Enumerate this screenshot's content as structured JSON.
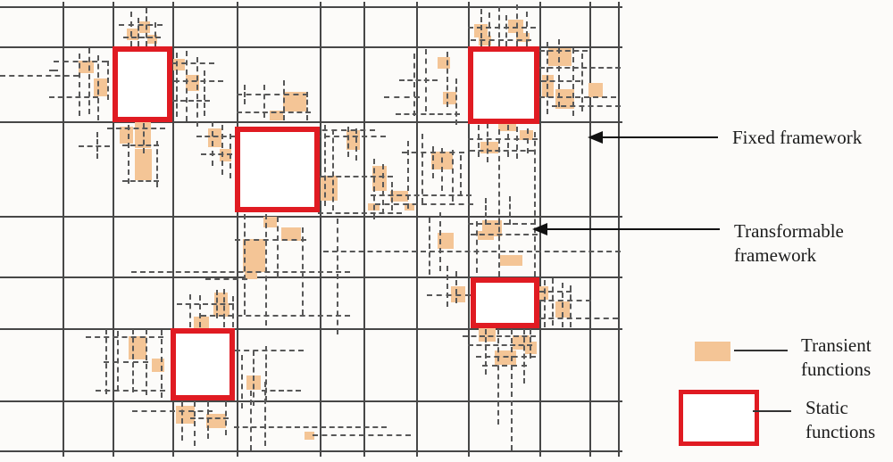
{
  "colors": {
    "background": "#fcfbf9",
    "grid": "#474747",
    "dash": "#585858",
    "static_red": "#e01b22",
    "transient_orange": "#f4c596",
    "text": "#1b1b1b",
    "arrow": "#111111"
  },
  "grid": {
    "v_lines": [
      70,
      126,
      193,
      265,
      358,
      407,
      466,
      524,
      604,
      660,
      692
    ],
    "h_lines": [
      7,
      52,
      136,
      242,
      310,
      368,
      449,
      505
    ],
    "v_span": [
      2,
      512
    ],
    "h_span": [
      0,
      697
    ]
  },
  "static_squares": [
    [
      126,
      52,
      67,
      85
    ],
    [
      263,
      142,
      95,
      96
    ],
    [
      524,
      52,
      80,
      87
    ],
    [
      527,
      311,
      77,
      57
    ],
    [
      191,
      368,
      72,
      81
    ]
  ],
  "transient_squares": [
    [
      142,
      32,
      13,
      13
    ],
    [
      156,
      24,
      12,
      13
    ],
    [
      165,
      39,
      11,
      10
    ],
    [
      88,
      68,
      17,
      14
    ],
    [
      105,
      88,
      15,
      20
    ],
    [
      134,
      142,
      15,
      19
    ],
    [
      151,
      136,
      18,
      30
    ],
    [
      151,
      167,
      19,
      35
    ],
    [
      194,
      66,
      13,
      13
    ],
    [
      208,
      84,
      15,
      18
    ],
    [
      317,
      103,
      26,
      22
    ],
    [
      302,
      124,
      15,
      11
    ],
    [
      233,
      144,
      15,
      21
    ],
    [
      246,
      167,
      13,
      14
    ],
    [
      359,
      197,
      19,
      28
    ],
    [
      295,
      243,
      15,
      12
    ],
    [
      315,
      255,
      22,
      15
    ],
    [
      272,
      268,
      25,
      37
    ],
    [
      274,
      303,
      14,
      10
    ],
    [
      240,
      328,
      15,
      17
    ],
    [
      388,
      146,
      15,
      22
    ],
    [
      417,
      186,
      16,
      28
    ],
    [
      437,
      214,
      20,
      12
    ],
    [
      483,
      170,
      24,
      20
    ],
    [
      412,
      228,
      13,
      8
    ],
    [
      453,
      228,
      11,
      8
    ],
    [
      490,
      64,
      14,
      13
    ],
    [
      496,
      103,
      15,
      14
    ],
    [
      490,
      261,
      18,
      18
    ],
    [
      535,
      259,
      18,
      10
    ],
    [
      531,
      27,
      15,
      15
    ],
    [
      536,
      40,
      14,
      11
    ],
    [
      569,
      22,
      17,
      15
    ],
    [
      578,
      37,
      15,
      10
    ],
    [
      614,
      54,
      26,
      20
    ],
    [
      607,
      84,
      13,
      25
    ],
    [
      622,
      100,
      21,
      22
    ],
    [
      659,
      93,
      16,
      16
    ],
    [
      558,
      137,
      20,
      10
    ],
    [
      582,
      146,
      15,
      11
    ],
    [
      538,
      159,
      20,
      13
    ],
    [
      540,
      247,
      22,
      18
    ],
    [
      560,
      286,
      25,
      12
    ],
    [
      602,
      321,
      12,
      15
    ],
    [
      622,
      338,
      16,
      18
    ],
    [
      505,
      321,
      16,
      18
    ],
    [
      536,
      368,
      19,
      15
    ],
    [
      574,
      376,
      19,
      16
    ],
    [
      554,
      393,
      24,
      16
    ],
    [
      588,
      383,
      13,
      14
    ],
    [
      217,
      355,
      17,
      13
    ],
    [
      239,
      340,
      18,
      15
    ],
    [
      144,
      377,
      20,
      26
    ],
    [
      170,
      402,
      14,
      15
    ],
    [
      197,
      455,
      21,
      20
    ],
    [
      231,
      464,
      22,
      16
    ],
    [
      276,
      421,
      16,
      16
    ],
    [
      341,
      484,
      11,
      9
    ]
  ],
  "dashed_v": [
    [
      146,
      13,
      52
    ],
    [
      154,
      20,
      52
    ],
    [
      163,
      9,
      52
    ],
    [
      173,
      25,
      52
    ],
    [
      88,
      60,
      130
    ],
    [
      99,
      54,
      128
    ],
    [
      109,
      62,
      135
    ],
    [
      120,
      68,
      112
    ],
    [
      108,
      148,
      178
    ],
    [
      143,
      140,
      206
    ],
    [
      160,
      138,
      172
    ],
    [
      175,
      158,
      210
    ],
    [
      197,
      59,
      131
    ],
    [
      208,
      57,
      136
    ],
    [
      220,
      64,
      142
    ],
    [
      228,
      79,
      130
    ],
    [
      273,
      95,
      117
    ],
    [
      295,
      95,
      132
    ],
    [
      317,
      90,
      135
    ],
    [
      343,
      103,
      135
    ],
    [
      237,
      136,
      186
    ],
    [
      248,
      140,
      196
    ],
    [
      257,
      150,
      200
    ],
    [
      273,
      240,
      353
    ],
    [
      297,
      240,
      365
    ],
    [
      310,
      243,
      312
    ],
    [
      338,
      255,
      353
    ],
    [
      377,
      245,
      375
    ],
    [
      242,
      325,
      357
    ],
    [
      363,
      140,
      231
    ],
    [
      372,
      145,
      236
    ],
    [
      389,
      142,
      176
    ],
    [
      398,
      144,
      180
    ],
    [
      418,
      178,
      246
    ],
    [
      428,
      184,
      240
    ],
    [
      438,
      204,
      236
    ],
    [
      456,
      158,
      234
    ],
    [
      472,
      150,
      228
    ],
    [
      484,
      164,
      200
    ],
    [
      494,
      166,
      214
    ],
    [
      506,
      168,
      226
    ],
    [
      515,
      174,
      220
    ],
    [
      463,
      60,
      130
    ],
    [
      476,
      55,
      125
    ],
    [
      500,
      58,
      120
    ],
    [
      510,
      88,
      140
    ],
    [
      480,
      244,
      308
    ],
    [
      492,
      238,
      304
    ],
    [
      533,
      248,
      306
    ],
    [
      538,
      10,
      52
    ],
    [
      547,
      14,
      52
    ],
    [
      558,
      7,
      52
    ],
    [
      566,
      17,
      52
    ],
    [
      578,
      5,
      52
    ],
    [
      589,
      13,
      52
    ],
    [
      612,
      47,
      128
    ],
    [
      625,
      44,
      120
    ],
    [
      641,
      54,
      130
    ],
    [
      651,
      60,
      125
    ],
    [
      535,
      140,
      176
    ],
    [
      545,
      138,
      182
    ],
    [
      568,
      140,
      176
    ],
    [
      578,
      142,
      178
    ],
    [
      590,
      144,
      172
    ],
    [
      558,
      145,
      310
    ],
    [
      598,
      148,
      310
    ],
    [
      543,
      222,
      252
    ],
    [
      570,
      220,
      252
    ],
    [
      609,
      314,
      367
    ],
    [
      618,
      312,
      365
    ],
    [
      629,
      317,
      367
    ],
    [
      638,
      320,
      367
    ],
    [
      543,
      369,
      420
    ],
    [
      557,
      369,
      476
    ],
    [
      572,
      369,
      505
    ],
    [
      586,
      369,
      430
    ],
    [
      593,
      369,
      402
    ],
    [
      500,
      298,
      344
    ],
    [
      510,
      304,
      340
    ],
    [
      212,
      330,
      367
    ],
    [
      223,
      331,
      367
    ],
    [
      250,
      324,
      367
    ],
    [
      260,
      332,
      367
    ],
    [
      118,
      369,
      442
    ],
    [
      131,
      371,
      438
    ],
    [
      148,
      369,
      440
    ],
    [
      163,
      369,
      443
    ],
    [
      180,
      370,
      446
    ],
    [
      203,
      450,
      494
    ],
    [
      217,
      450,
      500
    ],
    [
      232,
      450,
      492
    ],
    [
      252,
      450,
      488
    ],
    [
      280,
      438,
      505
    ],
    [
      296,
      428,
      500
    ],
    [
      270,
      398,
      458
    ],
    [
      283,
      393,
      455
    ],
    [
      297,
      388,
      450
    ]
  ],
  "dashed_h": [
    [
      133,
      182,
      27
    ],
    [
      138,
      180,
      41
    ],
    [
      60,
      120,
      68
    ],
    [
      0,
      88,
      84
    ],
    [
      55,
      110,
      108
    ],
    [
      55,
      65,
      78
    ],
    [
      88,
      123,
      163
    ],
    [
      137,
      178,
      162
    ],
    [
      137,
      178,
      202
    ],
    [
      193,
      240,
      70
    ],
    [
      195,
      250,
      90
    ],
    [
      193,
      235,
      112
    ],
    [
      120,
      185,
      143
    ],
    [
      265,
      345,
      105
    ],
    [
      265,
      348,
      125
    ],
    [
      220,
      263,
      152
    ],
    [
      225,
      260,
      172
    ],
    [
      263,
      343,
      268
    ],
    [
      230,
      277,
      312
    ],
    [
      147,
      392,
      304
    ],
    [
      225,
      392,
      353
    ],
    [
      362,
      695,
      281
    ],
    [
      350,
      420,
      145
    ],
    [
      353,
      432,
      152
    ],
    [
      450,
      520,
      170
    ],
    [
      357,
      440,
      197
    ],
    [
      415,
      528,
      218
    ],
    [
      420,
      530,
      228
    ],
    [
      356,
      450,
      238
    ],
    [
      447,
      490,
      89
    ],
    [
      443,
      515,
      127
    ],
    [
      430,
      470,
      108
    ],
    [
      524,
      600,
      30
    ],
    [
      527,
      595,
      44
    ],
    [
      604,
      658,
      56
    ],
    [
      604,
      695,
      75
    ],
    [
      606,
      650,
      90
    ],
    [
      604,
      690,
      108
    ],
    [
      618,
      695,
      118
    ],
    [
      524,
      602,
      155
    ],
    [
      526,
      598,
      168
    ],
    [
      524,
      600,
      250
    ],
    [
      527,
      602,
      262
    ],
    [
      604,
      640,
      326
    ],
    [
      604,
      662,
      336
    ],
    [
      604,
      692,
      356
    ],
    [
      518,
      600,
      376
    ],
    [
      524,
      596,
      386
    ],
    [
      533,
      600,
      399
    ],
    [
      540,
      590,
      409
    ],
    [
      478,
      527,
      330
    ],
    [
      198,
      262,
      340
    ],
    [
      96,
      183,
      377
    ],
    [
      116,
      166,
      405
    ],
    [
      107,
      185,
      437
    ],
    [
      148,
      238,
      460
    ],
    [
      213,
      256,
      468
    ],
    [
      262,
      433,
      478
    ],
    [
      293,
      337,
      437
    ],
    [
      263,
      340,
      392
    ],
    [
      350,
      460,
      487
    ]
  ],
  "labels": {
    "fixed": {
      "line1": "Fixed framework"
    },
    "transformable": {
      "line1": "Transformable",
      "line2": "framework"
    }
  },
  "legend": {
    "transient": {
      "line1": "Transient",
      "line2": "functions"
    },
    "static": {
      "line1": "Static",
      "line2": "functions"
    }
  }
}
